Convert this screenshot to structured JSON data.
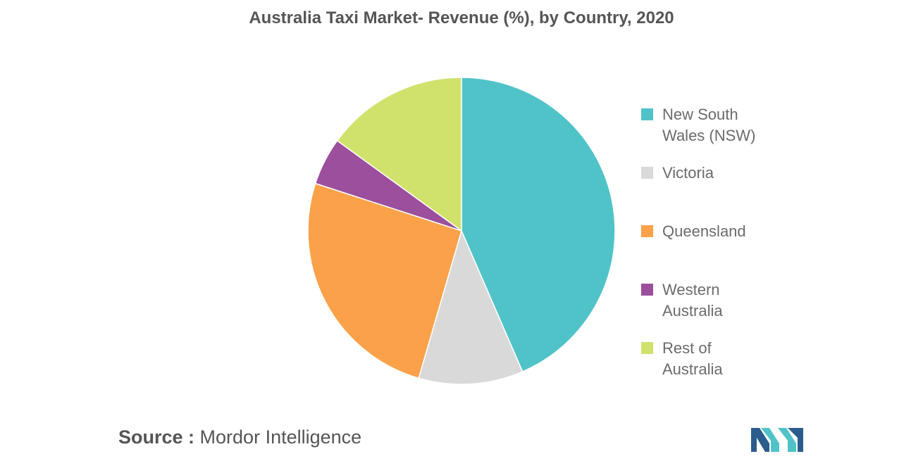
{
  "chart_data": {
    "type": "pie",
    "title": "Australia Taxi Market- Revenue (%), by Country, 2020",
    "slices": [
      {
        "label": "New South Wales (NSW)",
        "value": 43.5,
        "color": "#50c3c9"
      },
      {
        "label": "Victoria",
        "value": 11.0,
        "color": "#d9d9d9"
      },
      {
        "label": "Queensland",
        "value": 25.5,
        "color": "#fba149"
      },
      {
        "label": "Western Australia",
        "value": 5.0,
        "color": "#9c4f9d"
      },
      {
        "label": "Rest of Australia",
        "value": 15.0,
        "color": "#d0e26b"
      }
    ],
    "legend_position": "right"
  },
  "source": {
    "prefix": "Source :",
    "text": "Mordor Intelligence"
  },
  "logo": {
    "icon": "mordor-intelligence-logo",
    "colors": [
      "#2b5d8c",
      "#50c3c9"
    ]
  }
}
